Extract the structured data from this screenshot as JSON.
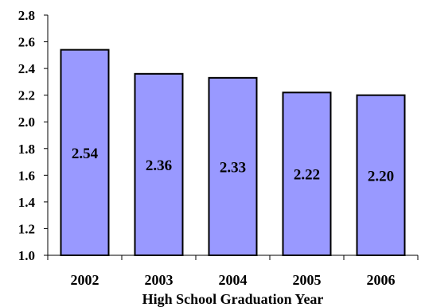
{
  "chart_data": {
    "type": "bar",
    "categories": [
      "2002",
      "2003",
      "2004",
      "2005",
      "2006"
    ],
    "values": [
      2.54,
      2.36,
      2.33,
      2.22,
      2.2
    ],
    "data_labels": [
      "2.54",
      "2.36",
      "2.33",
      "2.22",
      "2.20"
    ],
    "title": "",
    "xlabel": "High School Graduation Year",
    "ylabel": "",
    "ylim": [
      1.0,
      2.8
    ],
    "yticks": [
      "1.0",
      "1.2",
      "1.4",
      "1.6",
      "1.8",
      "2.0",
      "2.2",
      "2.4",
      "2.6",
      "2.8"
    ],
    "grid": false,
    "colors": {
      "bar_fill": "#9999ff",
      "bar_stroke": "#000000",
      "axis": "#000000"
    }
  }
}
